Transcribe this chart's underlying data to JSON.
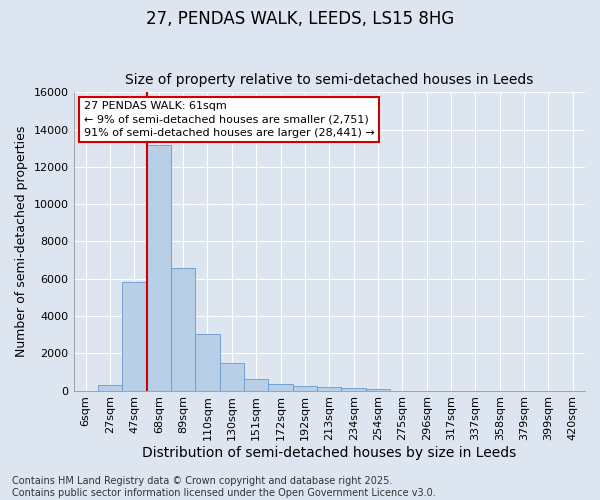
{
  "title": "27, PENDAS WALK, LEEDS, LS15 8HG",
  "subtitle": "Size of property relative to semi-detached houses in Leeds",
  "xlabel": "Distribution of semi-detached houses by size in Leeds",
  "ylabel": "Number of semi-detached properties",
  "categories": [
    "6sqm",
    "27sqm",
    "47sqm",
    "68sqm",
    "89sqm",
    "110sqm",
    "130sqm",
    "151sqm",
    "172sqm",
    "192sqm",
    "213sqm",
    "234sqm",
    "254sqm",
    "275sqm",
    "296sqm",
    "317sqm",
    "337sqm",
    "358sqm",
    "379sqm",
    "399sqm",
    "420sqm"
  ],
  "bar_values": [
    0,
    300,
    5850,
    13200,
    6600,
    3050,
    1500,
    600,
    350,
    250,
    200,
    130,
    100,
    0,
    0,
    0,
    0,
    0,
    0,
    0,
    0
  ],
  "bar_color": "#b8cfe8",
  "bar_edge_color": "#6699cc",
  "background_color": "#dde6f0",
  "grid_color": "#ffffff",
  "vline_x_index": 3,
  "vline_color": "#cc0000",
  "annotation_text": "27 PENDAS WALK: 61sqm\n← 9% of semi-detached houses are smaller (2,751)\n91% of semi-detached houses are larger (28,441) →",
  "annotation_box_facecolor": "white",
  "annotation_box_edgecolor": "#cc0000",
  "ylim": [
    0,
    16000
  ],
  "yticks": [
    0,
    2000,
    4000,
    6000,
    8000,
    10000,
    12000,
    14000,
    16000
  ],
  "footnote": "Contains HM Land Registry data © Crown copyright and database right 2025.\nContains public sector information licensed under the Open Government Licence v3.0.",
  "title_fontsize": 12,
  "subtitle_fontsize": 10,
  "xlabel_fontsize": 10,
  "ylabel_fontsize": 9,
  "tick_fontsize": 8,
  "annot_fontsize": 8,
  "footnote_fontsize": 7
}
